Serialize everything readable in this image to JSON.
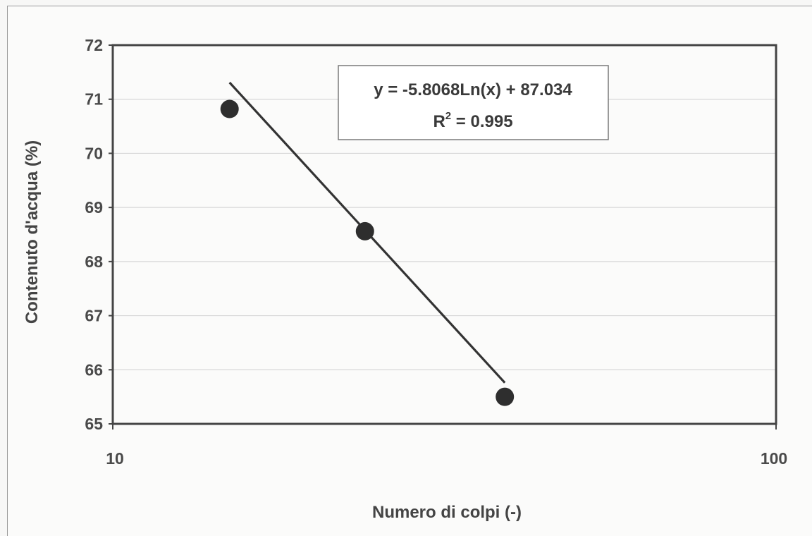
{
  "chart_data": {
    "type": "scatter",
    "title": "",
    "xlabel": "Numero di colpi (-)",
    "ylabel": "Contenuto d'acqua (%)",
    "x_scale": "log",
    "xlim": [
      10,
      100
    ],
    "ylim": [
      65,
      72
    ],
    "x_ticks": [
      "10",
      "100"
    ],
    "y_ticks": [
      "65",
      "66",
      "67",
      "68",
      "69",
      "70",
      "71",
      "72"
    ],
    "grid": "horizontal",
    "legend": "none",
    "points": [
      {
        "x": 15,
        "y": 70.82
      },
      {
        "x": 24,
        "y": 68.56
      },
      {
        "x": 39,
        "y": 65.5
      }
    ],
    "trendline": {
      "type": "logarithmic",
      "slope": -5.8068,
      "intercept": 87.034,
      "x_range": [
        15,
        39
      ],
      "equation": "y = -5.8068Ln(x) + 87.034",
      "r2_prefix": "R",
      "r2_exponent": "2",
      "r2_value": " = 0.995"
    },
    "colors": {
      "marker": "#2e2e2e",
      "line": "#333333",
      "grid": "#d8d8d8",
      "axes": "#444444"
    }
  }
}
